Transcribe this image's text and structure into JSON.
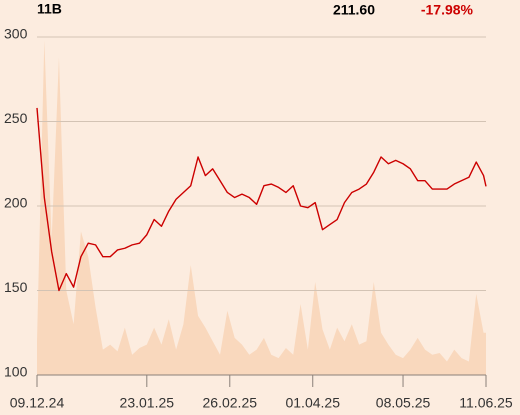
{
  "chart_data": {
    "type": "line",
    "volume_label": "11B",
    "last_price": "211.60",
    "change": "-17.98%",
    "x": [
      "09.12.24",
      "12.12.24",
      "15.12.24",
      "18.12.24",
      "21.12.24",
      "24.12.24",
      "27.12.24",
      "30.12.24",
      "02.01.25",
      "05.01.25",
      "08.01.25",
      "11.01.25",
      "14.01.25",
      "17.01.25",
      "20.01.25",
      "23.01.25",
      "26.01.25",
      "29.01.25",
      "01.02.25",
      "04.02.25",
      "07.02.25",
      "10.02.25",
      "13.02.25",
      "16.02.25",
      "19.02.25",
      "22.02.25",
      "25.02.25",
      "28.02.25",
      "03.03.25",
      "06.03.25",
      "09.03.25",
      "12.03.25",
      "15.03.25",
      "18.03.25",
      "21.03.25",
      "24.03.25",
      "27.03.25",
      "30.03.25",
      "02.04.25",
      "05.04.25",
      "08.04.25",
      "11.04.25",
      "14.04.25",
      "17.04.25",
      "20.04.25",
      "23.04.25",
      "26.04.25",
      "29.04.25",
      "02.05.25",
      "05.05.25",
      "08.05.25",
      "11.05.25",
      "14.05.25",
      "17.05.25",
      "20.05.25",
      "23.05.25",
      "26.05.25",
      "29.05.25",
      "01.06.25",
      "04.06.25",
      "07.06.25",
      "10.06.25",
      "11.06.25"
    ],
    "series": [
      {
        "color": "#cc0000",
        "values": [
          258,
          205,
          173,
          150,
          160,
          152,
          170,
          178,
          177,
          170,
          170,
          174,
          175,
          177,
          178,
          183,
          192,
          188,
          197,
          204,
          208,
          212,
          229,
          218,
          222,
          215,
          208,
          205,
          207,
          205,
          201,
          212,
          213,
          211,
          208,
          212,
          200,
          199,
          202,
          186,
          189,
          192,
          202,
          208,
          210,
          213,
          220,
          229,
          225,
          227,
          225,
          222,
          215,
          215,
          210,
          210,
          210,
          213,
          215,
          217,
          226,
          218,
          211.6
        ]
      },
      {
        "color": "#f9d8bd",
        "area": true,
        "values": [
          120,
          298,
          180,
          288,
          150,
          130,
          185,
          170,
          140,
          115,
          118,
          114,
          128,
          112,
          116,
          118,
          128,
          118,
          133,
          115,
          130,
          165,
          135,
          128,
          120,
          112,
          138,
          122,
          118,
          112,
          115,
          122,
          112,
          110,
          116,
          112,
          142,
          115,
          155,
          127,
          115,
          128,
          120,
          130,
          118,
          120,
          155,
          125,
          118,
          112,
          110,
          115,
          122,
          115,
          112,
          113,
          108,
          115,
          110,
          108,
          148,
          125,
          125
        ]
      }
    ],
    "xlim": [
      "09.12.24",
      "11.06.25"
    ],
    "xticks": [
      "09.12.24",
      "23.01.25",
      "26.02.25",
      "01.04.25",
      "08.05.25",
      "11.06.25"
    ],
    "ylim": [
      100,
      300
    ],
    "yticks": [
      100,
      150,
      200,
      250,
      300
    ],
    "grid": true
  }
}
